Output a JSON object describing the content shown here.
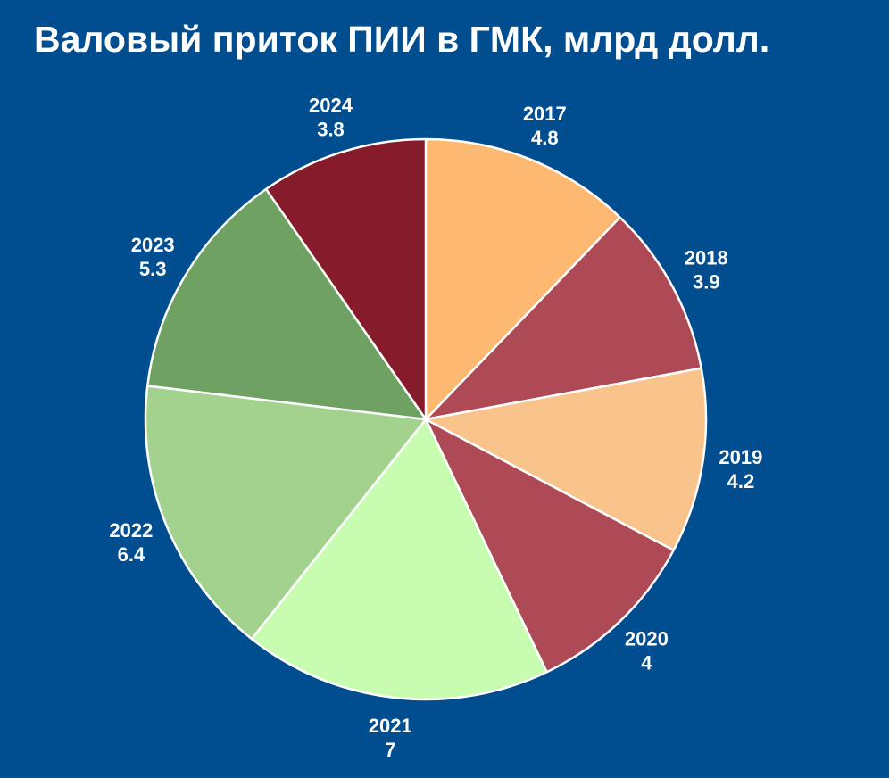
{
  "chart_data": {
    "type": "pie",
    "title": "Валовый приток ПИИ в ГМК, млрд долл.",
    "slices": [
      {
        "label": "2017",
        "value": 4.8,
        "value_text": "4.8",
        "color": "#fdb871"
      },
      {
        "label": "2018",
        "value": 3.9,
        "value_text": "3.9",
        "color": "#ad4a56"
      },
      {
        "label": "2019",
        "value": 4.2,
        "value_text": "4.2",
        "color": "#f8c48c"
      },
      {
        "label": "2020",
        "value": 4.0,
        "value_text": "4",
        "color": "#ad4a56"
      },
      {
        "label": "2021",
        "value": 7.0,
        "value_text": "7",
        "color": "#c8fcb0"
      },
      {
        "label": "2022",
        "value": 6.4,
        "value_text": "6.4",
        "color": "#a3d28f"
      },
      {
        "label": "2023",
        "value": 5.3,
        "value_text": "5.3",
        "color": "#6fa162"
      },
      {
        "label": "2024",
        "value": 3.8,
        "value_text": "3.8",
        "color": "#861b2b"
      }
    ],
    "start_angle": "12 o'clock",
    "direction": "clockwise",
    "legend": "none",
    "labels": "outside"
  },
  "colors": {
    "background": "#004d8f",
    "text": "#ffffff",
    "slice_border": "#ffffff"
  }
}
